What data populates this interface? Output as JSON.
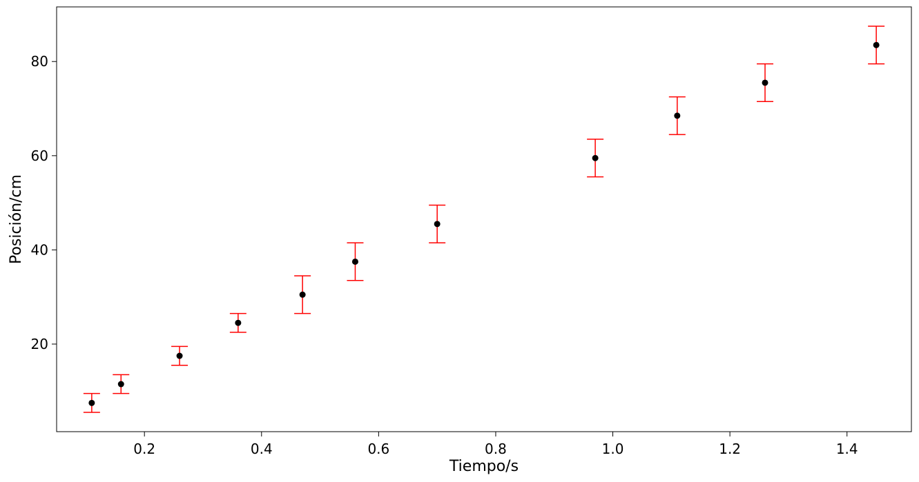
{
  "chart_data": {
    "type": "scatter",
    "xlabel": "Tiempo/s",
    "ylabel": "Posición/cm",
    "xlim": [
      0.05,
      1.51
    ],
    "ylim": [
      1.4,
      91.6
    ],
    "xticks": [
      0.2,
      0.4,
      0.6,
      0.8,
      1.0,
      1.2,
      1.4
    ],
    "xtick_labels": [
      "0.2",
      "0.4",
      "0.6",
      "0.8",
      "1.0",
      "1.2",
      "1.4"
    ],
    "yticks": [
      20,
      40,
      60,
      80
    ],
    "ytick_labels": [
      "20",
      "40",
      "60",
      "80"
    ],
    "grid": false,
    "series": [
      {
        "x": [
          0.11,
          0.16,
          0.26,
          0.36,
          0.47,
          0.56,
          0.7,
          0.97,
          1.11,
          1.26,
          1.45
        ],
        "y": [
          7.5,
          11.5,
          17.5,
          24.5,
          30.5,
          37.5,
          45.5,
          59.5,
          68.5,
          75.5,
          83.5
        ],
        "yerr": [
          2,
          2,
          2,
          2,
          4,
          4,
          4,
          4,
          4,
          4,
          4
        ],
        "marker_color": "#000000",
        "error_color": "#ff0000"
      }
    ]
  }
}
